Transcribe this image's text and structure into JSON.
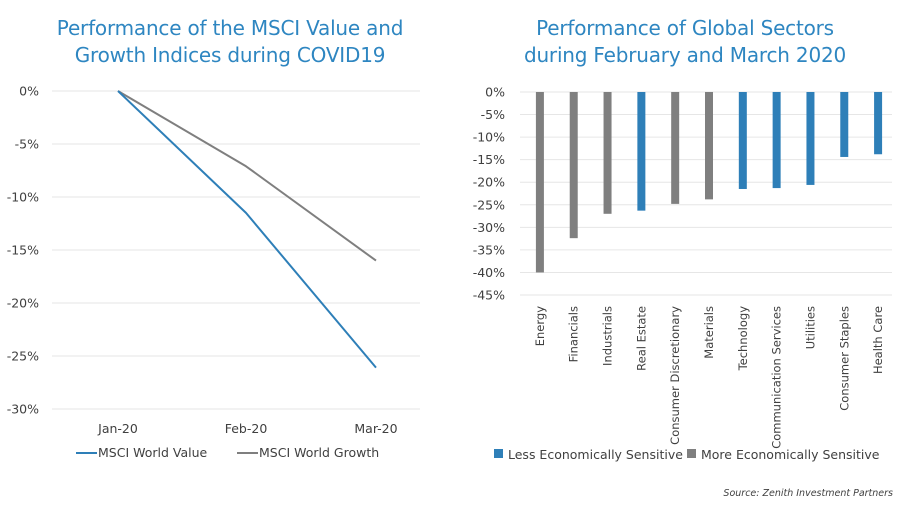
{
  "colors": {
    "title": "#2e86c1",
    "blue": "#2e7fb8",
    "gray": "#7f7f7f",
    "grid": "#e6e6e6",
    "text": "#404040"
  },
  "source": "Source: Zenith Investment Partners",
  "chart_data": [
    {
      "type": "line",
      "title": "Performance of the MSCI Value and Growth Indices during COVID19",
      "title_lines": [
        "Performance of the MSCI Value and",
        "Growth Indices during COVID19"
      ],
      "xlabel": "",
      "ylabel": "",
      "x": [
        "Jan-20",
        "Feb-20",
        "Mar-20"
      ],
      "ylim": [
        -30,
        0
      ],
      "yticks": [
        0,
        -5,
        -10,
        -15,
        -20,
        -25,
        -30
      ],
      "ytick_labels": [
        "0%",
        "-5%",
        "-10%",
        "-15%",
        "-20%",
        "-25%",
        "-30%"
      ],
      "grid": true,
      "legend_position": "bottom",
      "series": [
        {
          "name": "MSCI World Value",
          "color": "#2e7fb8",
          "values": [
            0,
            -11.5,
            -26.1
          ]
        },
        {
          "name": "MSCI World Growth",
          "color": "#7f7f7f",
          "values": [
            0,
            -7.1,
            -16.0
          ]
        }
      ]
    },
    {
      "type": "bar",
      "title": "Performance of Global Sectors during February and March 2020",
      "title_lines": [
        "Performance of Global Sectors",
        "during February and March 2020"
      ],
      "xlabel": "",
      "ylabel": "",
      "categories": [
        "Energy",
        "Financials",
        "Industrials",
        "Real Estate",
        "Consumer Discretionary",
        "Materials",
        "Technology",
        "Communication Services",
        "Utilities",
        "Consumer Staples",
        "Health Care"
      ],
      "values": [
        -40.0,
        -32.4,
        -27.0,
        -26.3,
        -24.8,
        -23.8,
        -21.5,
        -21.3,
        -20.6,
        -14.4,
        -13.8
      ],
      "groups": [
        "More",
        "More",
        "More",
        "Less",
        "More",
        "More",
        "Less",
        "Less",
        "Less",
        "Less",
        "Less"
      ],
      "ylim": [
        -45,
        0
      ],
      "yticks": [
        0,
        -5,
        -10,
        -15,
        -20,
        -25,
        -30,
        -35,
        -40,
        -45
      ],
      "ytick_labels": [
        "0%",
        "-5%",
        "-10%",
        "-15%",
        "-20%",
        "-25%",
        "-30%",
        "-35%",
        "-40%",
        "-45%"
      ],
      "grid": true,
      "legend_position": "bottom",
      "legend": [
        {
          "key": "Less",
          "name": "Less Economically Sensitive",
          "color": "#2e7fb8"
        },
        {
          "key": "More",
          "name": "More Economically Sensitive",
          "color": "#7f7f7f"
        }
      ]
    }
  ]
}
